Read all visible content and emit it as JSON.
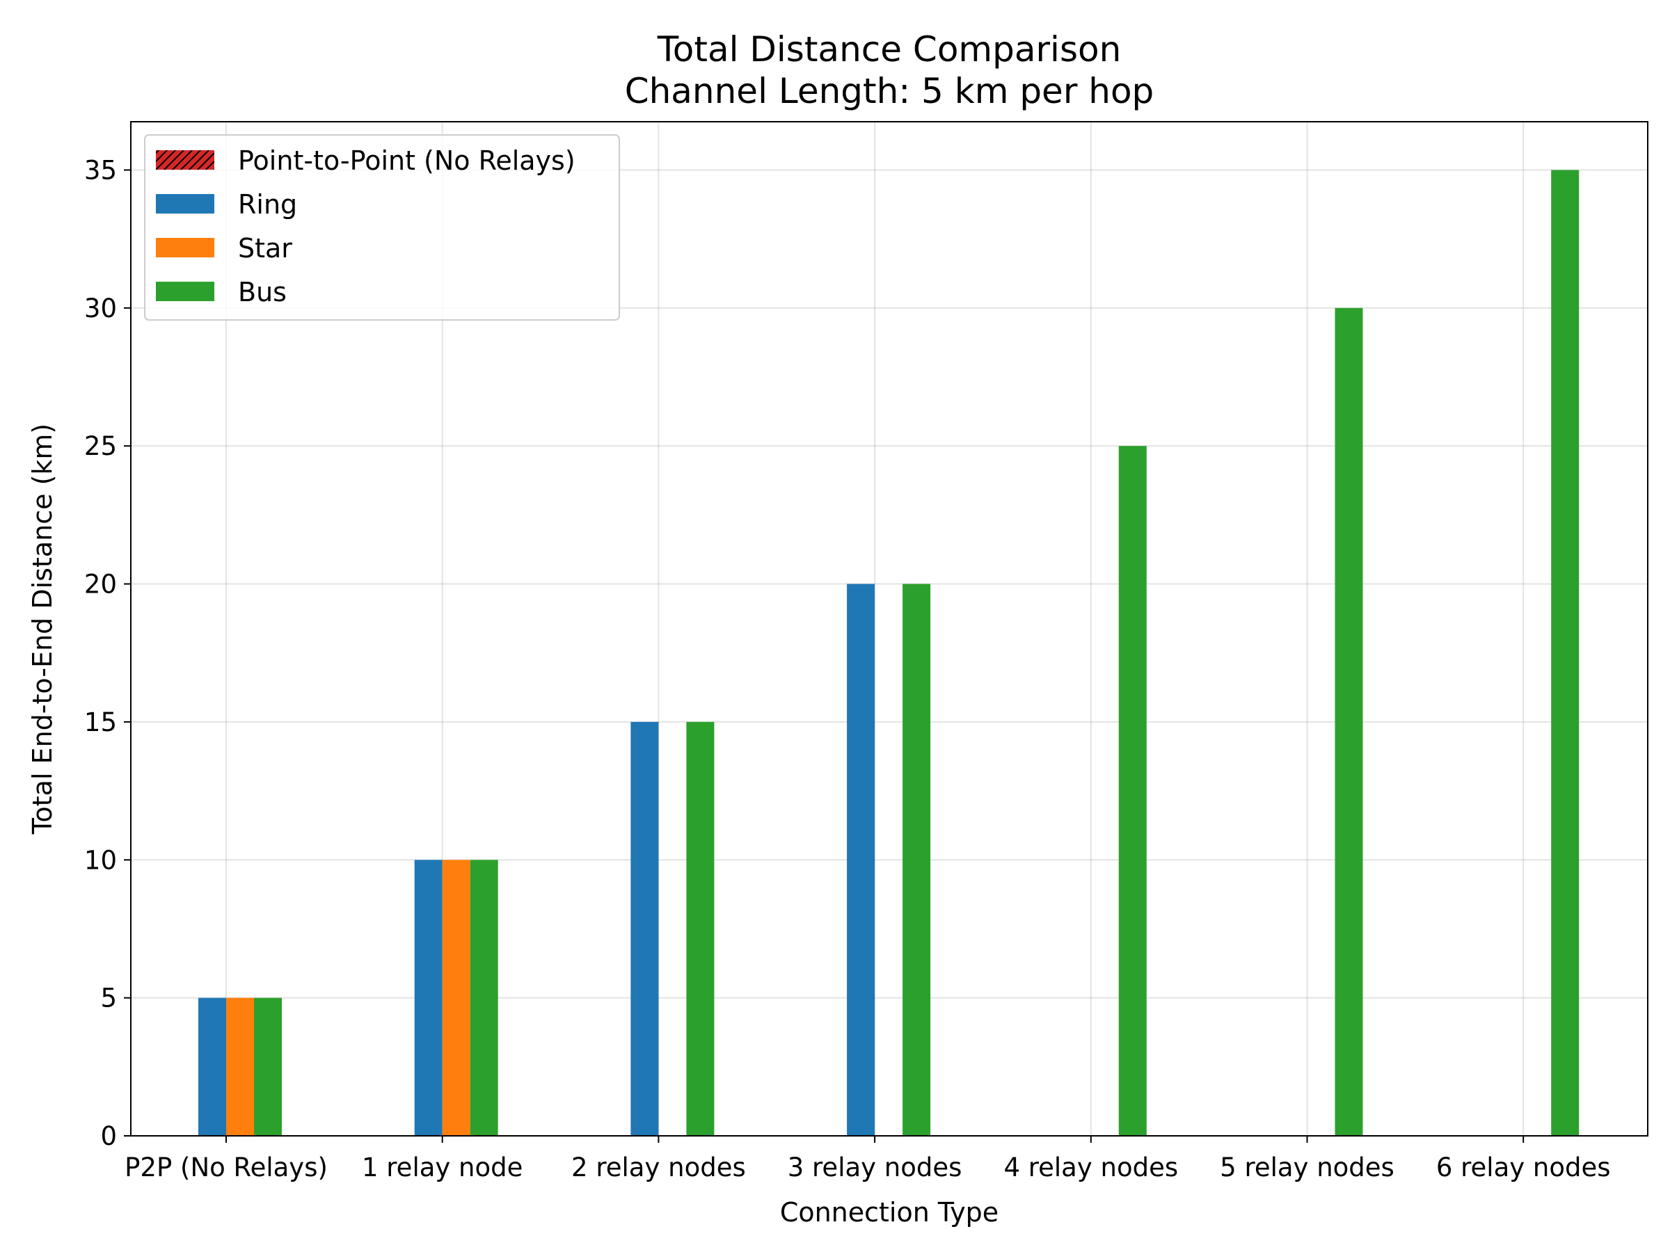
{
  "chart_data": {
    "type": "bar",
    "title": [
      "Total Distance Comparison",
      "Channel Length: 5 km per hop"
    ],
    "xlabel": "Connection Type",
    "ylabel": "Total End-to-End Distance (km)",
    "categories": [
      "P2P (No Relays)",
      "1 relay node",
      "2 relay nodes",
      "3 relay nodes",
      "4 relay nodes",
      "5 relay nodes",
      "6 relay nodes"
    ],
    "ylim": [
      0,
      36.75
    ],
    "yticks": [
      0,
      5,
      10,
      15,
      20,
      25,
      30,
      35
    ],
    "grid": true,
    "legend_position": "upper-left",
    "series": [
      {
        "name": "Point-to-Point (No Relays)",
        "color": "#d62728",
        "hatch": true,
        "values": [
          null,
          null,
          null,
          null,
          null,
          null,
          null
        ]
      },
      {
        "name": "Ring",
        "color": "#1f77b4",
        "values": [
          5,
          10,
          15,
          20,
          null,
          null,
          null
        ]
      },
      {
        "name": "Star",
        "color": "#ff7f0e",
        "values": [
          5,
          10,
          null,
          null,
          null,
          null,
          null
        ]
      },
      {
        "name": "Bus",
        "color": "#2ca02c",
        "values": [
          5,
          10,
          15,
          20,
          25,
          30,
          35
        ]
      }
    ]
  }
}
